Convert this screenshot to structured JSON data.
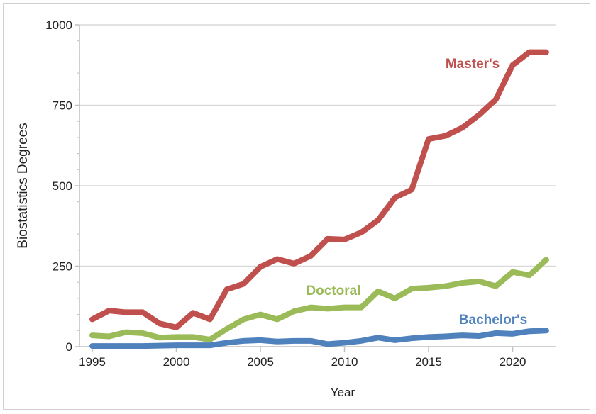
{
  "chart_data": {
    "type": "line",
    "title": "",
    "xlabel": "Year",
    "ylabel": "Biostatistics Degrees",
    "xlim": [
      1995,
      2022
    ],
    "ylim": [
      0,
      1000
    ],
    "xticks": [
      1995,
      2000,
      2005,
      2010,
      2015,
      2020
    ],
    "yticks": [
      0,
      250,
      500,
      750,
      1000
    ],
    "grid": true,
    "legend": "inline labels",
    "x": [
      1995,
      1996,
      1997,
      1998,
      1999,
      2000,
      2001,
      2002,
      2003,
      2004,
      2005,
      2006,
      2007,
      2008,
      2009,
      2010,
      2011,
      2012,
      2013,
      2014,
      2015,
      2016,
      2017,
      2018,
      2019,
      2020,
      2021,
      2022
    ],
    "series": [
      {
        "name": "Master's",
        "color": "#c0504d",
        "values": [
          85,
          112,
          107,
          107,
          72,
          60,
          105,
          85,
          178,
          195,
          248,
          272,
          258,
          282,
          335,
          333,
          355,
          393,
          463,
          488,
          645,
          655,
          680,
          720,
          768,
          875,
          915,
          915
        ]
      },
      {
        "name": "Doctoral",
        "color": "#9bbb59",
        "values": [
          35,
          32,
          45,
          42,
          28,
          30,
          30,
          22,
          55,
          85,
          100,
          85,
          110,
          122,
          118,
          122,
          122,
          172,
          150,
          180,
          183,
          188,
          198,
          203,
          188,
          232,
          222,
          270
        ]
      },
      {
        "name": "Bachelor's",
        "color": "#4f81bd",
        "values": [
          2,
          2,
          2,
          2,
          3,
          4,
          4,
          4,
          12,
          18,
          20,
          16,
          18,
          18,
          8,
          12,
          18,
          28,
          20,
          26,
          30,
          32,
          35,
          33,
          42,
          40,
          48,
          50
        ]
      }
    ]
  }
}
